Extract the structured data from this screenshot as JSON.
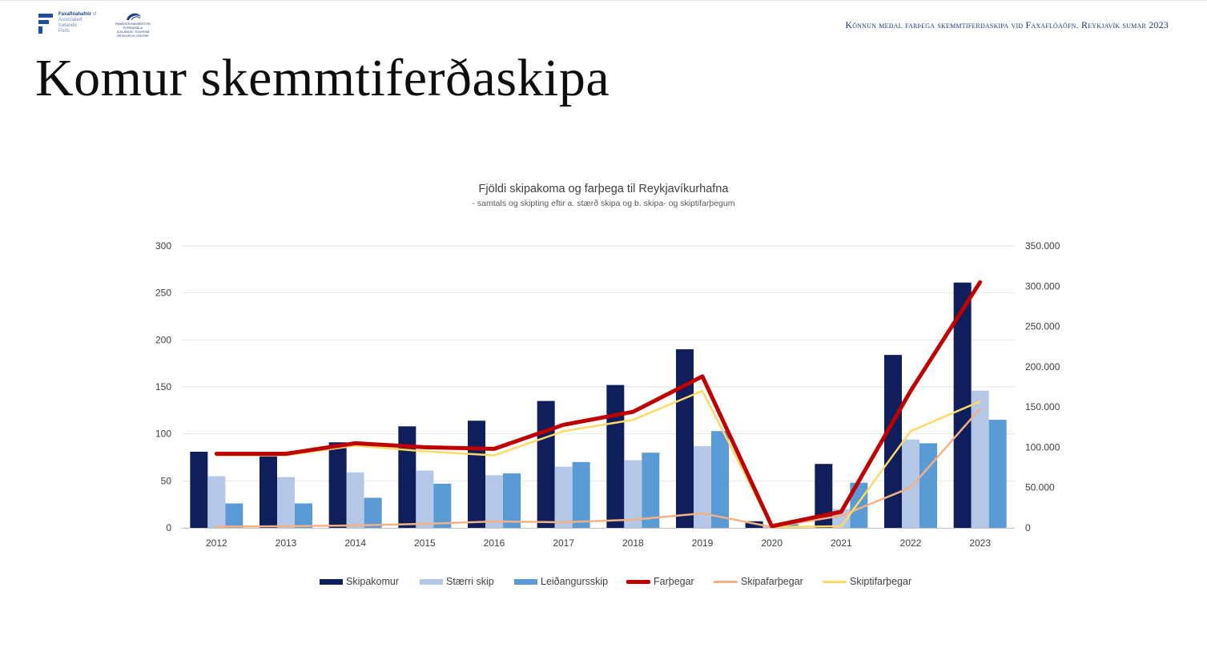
{
  "header": {
    "logo_ports": {
      "line1_bold": "Faxaflóahafnir",
      "line1_rest": " sf",
      "line2": "Associated",
      "line3": "Icelandic",
      "line4": "Ports"
    },
    "logo_trc": {
      "line1": "RANNSÓKNAMIÐSTÖÐ",
      "line2": "FERÐAMÁLA",
      "line3": "ICELANDIC TOURISM",
      "line4": "RESEARCH CENTRE"
    },
    "report_title": "Könnun meðal farþega skemmtiferðaskipa við Faxaflóaöfn. Reykjavík sumar 2023"
  },
  "page": {
    "title": "Komur skemmtiferðaskipa"
  },
  "colors": {
    "skipakomur": "#0f1f5c",
    "staerri": "#b4c7e7",
    "leidangur": "#5b9bd5",
    "farthegar": "#c00000",
    "skipafarthegar": "#f4b183",
    "skiptifarthegar": "#ffd966",
    "grid": "#d9d9d9",
    "axis": "#bfbfbf"
  },
  "chart_data": {
    "type": "bar",
    "title": "Fjöldi skipakoma og farþega til Reykjavíkurhafna",
    "subtitle": "- samtals og skipting eftir a. stærð skipa og b. skipa- og skiptifarþegum",
    "categories": [
      "2012",
      "2013",
      "2014",
      "2015",
      "2016",
      "2017",
      "2018",
      "2019",
      "2020",
      "2021",
      "2022",
      "2023"
    ],
    "ylim": [
      0,
      300
    ],
    "y_ticks": [
      "300",
      "250",
      "200",
      "150",
      "100",
      "50",
      "0"
    ],
    "y2lim": [
      0,
      350000
    ],
    "y2_ticks": [
      "350.000",
      "300.000",
      "250.000",
      "200.000",
      "150.000",
      "100.000",
      "50.000",
      "0"
    ],
    "grid": true,
    "legend_position": "bottom",
    "bar_series": [
      {
        "name": "Skipakomur",
        "values": [
          81,
          79,
          91,
          108,
          114,
          135,
          152,
          190,
          7,
          68,
          184,
          261
        ]
      },
      {
        "name": "Stærri skip",
        "values": [
          55,
          54,
          59,
          61,
          56,
          65,
          72,
          87,
          1,
          20,
          94,
          146
        ]
      },
      {
        "name": "Leiðangursskip",
        "values": [
          26,
          26,
          32,
          47,
          58,
          70,
          80,
          103,
          5,
          48,
          90,
          115
        ]
      }
    ],
    "line_series": [
      {
        "name": "Farþegar",
        "axis": "right",
        "values": [
          92000,
          92000,
          105000,
          100000,
          98000,
          128000,
          144000,
          188000,
          2000,
          20000,
          170000,
          305000
        ]
      },
      {
        "name": "Skipafarþegar",
        "axis": "right",
        "values": [
          1500,
          2000,
          3000,
          5000,
          8000,
          7000,
          10000,
          18000,
          1000,
          15000,
          50000,
          148000
        ]
      },
      {
        "name": "Skiptifarþegar",
        "axis": "right",
        "values": [
          90000,
          90000,
          102000,
          95000,
          90000,
          120000,
          134000,
          170000,
          1000,
          2000,
          120000,
          157000
        ]
      }
    ]
  },
  "legend": {
    "items": [
      "Skipakomur",
      "Stærri skip",
      "Leiðangursskip",
      "Farþegar",
      "Skipafarþegar",
      "Skiptifarþegar"
    ]
  }
}
